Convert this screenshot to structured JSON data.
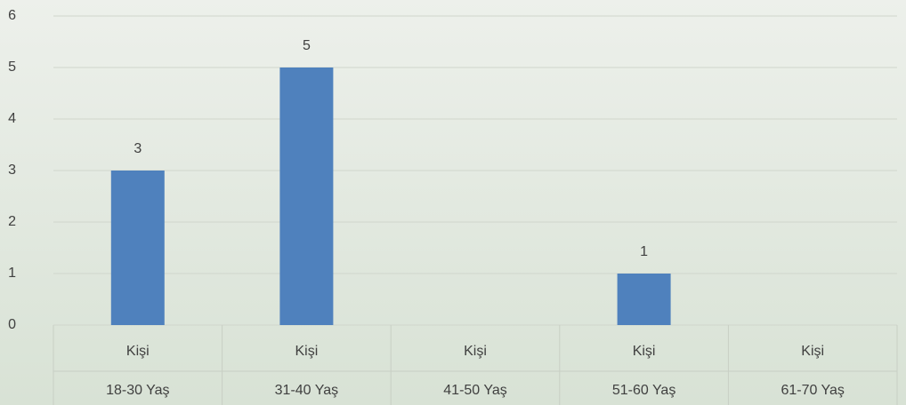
{
  "chart_data": {
    "type": "bar",
    "categories": [
      "Kişi",
      "Kişi",
      "Kişi",
      "Kişi",
      "Kişi"
    ],
    "groups": [
      "18-30 Yaş",
      "31-40 Yaş",
      "41-50 Yaş",
      "51-60 Yaş",
      "61-70 Yaş"
    ],
    "values": [
      3,
      5,
      null,
      1,
      null
    ],
    "color": "#4f81bd",
    "ylim": [
      0,
      6
    ],
    "yticks": [
      0,
      1,
      2,
      3,
      4,
      5,
      6
    ],
    "grid": true
  }
}
